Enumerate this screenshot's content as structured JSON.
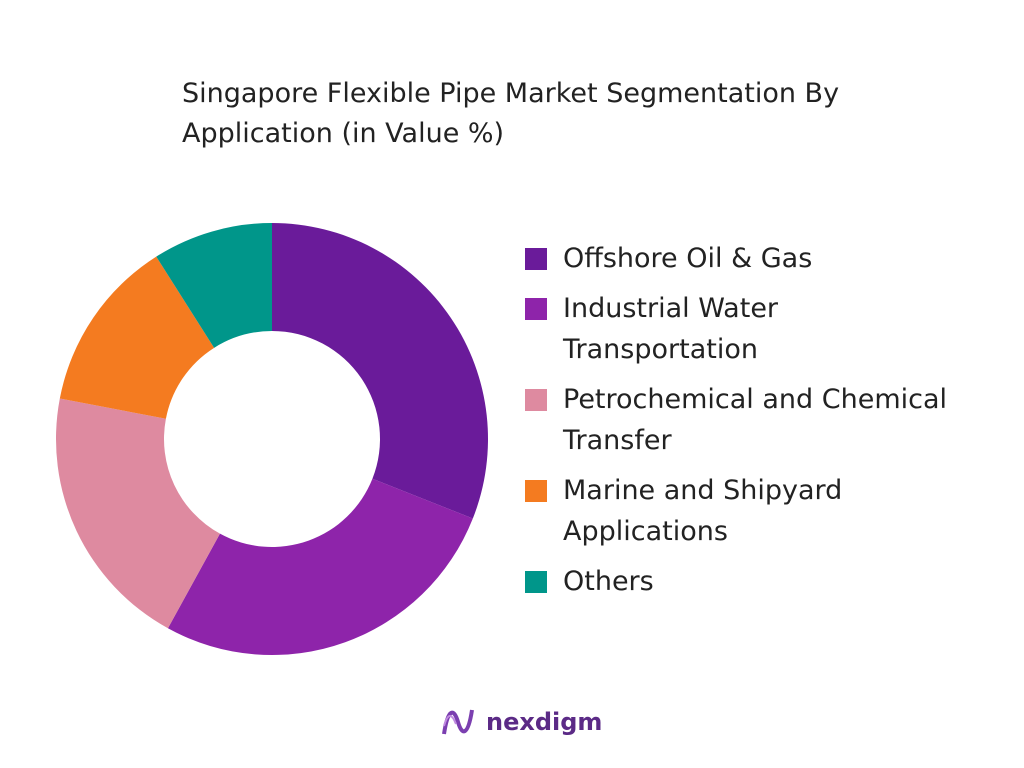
{
  "chart_data": {
    "type": "donut",
    "title": "Singapore Flexible Pipe Market Segmentation By Application (in Value %)",
    "categories": [
      "Offshore Oil & Gas",
      "Industrial Water Transportation",
      "Petrochemical and Chemical Transfer",
      "Marine and Shipyard Applications",
      "Others"
    ],
    "values": [
      31,
      27,
      20,
      13,
      9
    ],
    "colors": [
      "#6a1b9a",
      "#8e24aa",
      "#de8aa0",
      "#f47b20",
      "#00968a"
    ],
    "legend": "right"
  },
  "brand": "nexdigm"
}
